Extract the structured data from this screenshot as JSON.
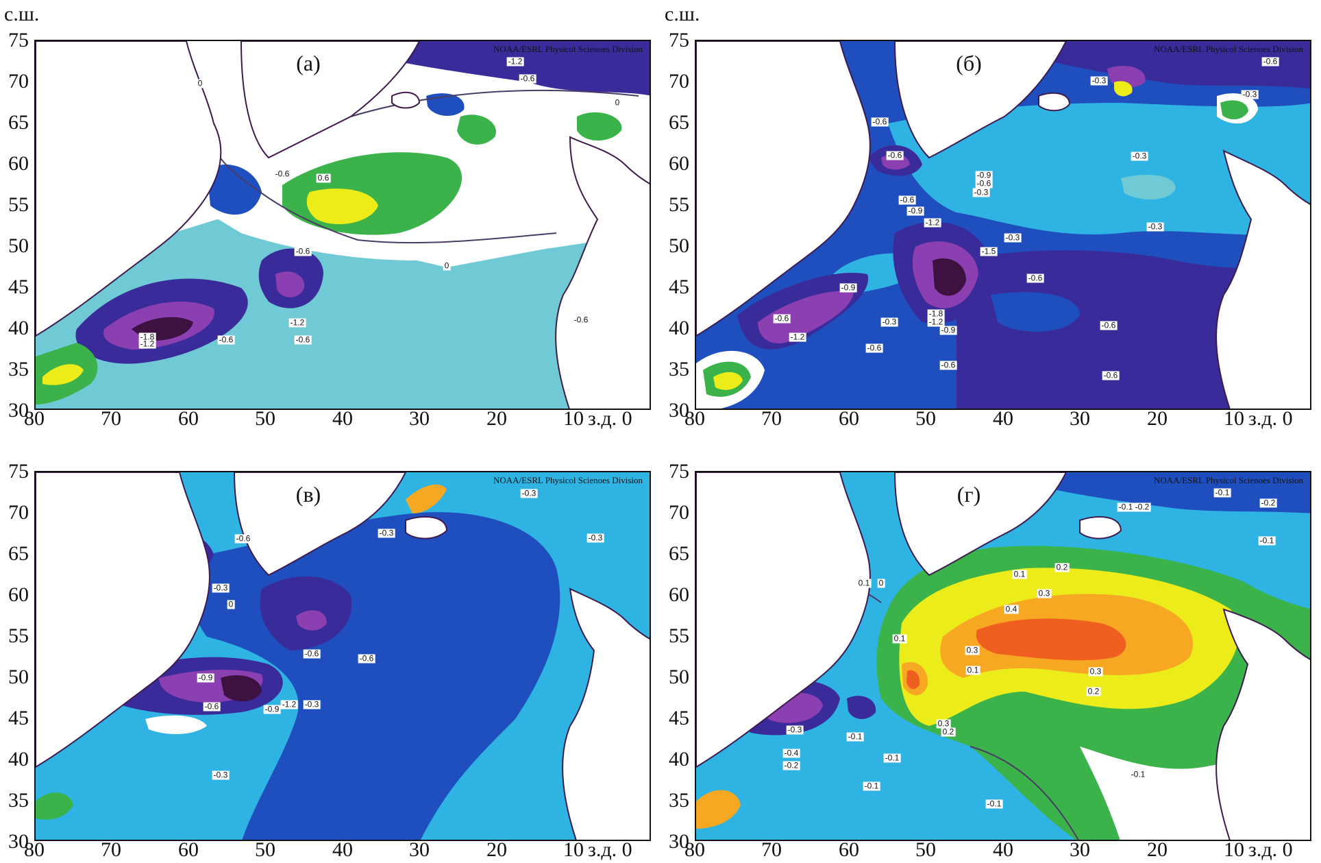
{
  "axes": {
    "y_unit": "с.ш.",
    "y_ticks": [
      "75",
      "70",
      "65",
      "60",
      "55",
      "50",
      "45",
      "40",
      "35",
      "30"
    ],
    "x_ticks": [
      "80",
      "70",
      "60",
      "50",
      "40",
      "30",
      "20",
      "10"
    ],
    "x_unit": "з.д. 0",
    "lat_range": [
      30,
      75
    ],
    "lon_range_west": [
      80,
      0
    ]
  },
  "credit": "NOAA/ESRL Physicol Scienoes Division",
  "colors": {
    "land": "#ffffff",
    "coast": "#3d1a4e",
    "contour": "#4a3b66",
    "neg_0": "#ffffff",
    "neg_1": "#6fcad6",
    "neg_2": "#2fb3e3",
    "neg_3": "#1f4fbf",
    "neg_4": "#3a2b9a",
    "neg_5": "#8b3fb0",
    "neg_6": "#3d1140",
    "pos_1": "#3bb34a",
    "pos_2": "#7cc242",
    "pos_3": "#ecec1a",
    "pos_4": "#f7a823",
    "pos_5": "#ef6020"
  },
  "panels": [
    {
      "label": "(а)",
      "contour_labels": [
        "-1.2",
        "-0.6",
        "0",
        "-0.6",
        "0.6",
        "-0.6",
        "-1.2",
        "-0.6",
        "-1.8",
        "-1.2",
        "-0.6",
        "-0.6",
        "0",
        "0"
      ]
    },
    {
      "label": "(б)",
      "contour_labels": [
        "-0.6",
        "-0.3",
        "-0.3",
        "-0.6",
        "-0.6",
        "-0.9",
        "-0.6",
        "-0.3",
        "-0.3",
        "-0.6",
        "-0.9",
        "-1.2",
        "-0.3",
        "-0.3",
        "-1.5",
        "-0.6",
        "-0.9",
        "-0.6",
        "-1.2",
        "-0.3",
        "-1.8",
        "-1.2",
        "-0.9",
        "-0.6",
        "-0.6",
        "-0.6",
        "-0.6"
      ]
    },
    {
      "label": "(в)",
      "contour_labels": [
        "-0.3",
        "-0.6",
        "-0.3",
        "-0.3",
        "-0.3",
        "0",
        "-0.6",
        "-0.6",
        "-0.9",
        "-0.6",
        "-0.9",
        "-1.2",
        "-0.3",
        "-0.3"
      ]
    },
    {
      "label": "(г)",
      "contour_labels": [
        "-0.1",
        "-0.1",
        "-0.2",
        "-0.2",
        "-0.1",
        "0.1",
        "0",
        "0.2",
        "0.1",
        "0.3",
        "0.4",
        "0.1",
        "0.3",
        "0.1",
        "0.3",
        "0.2",
        "0.3",
        "0.2",
        "-0.3",
        "-0.1",
        "-0.4",
        "-0.2",
        "-0.1",
        "-0.1",
        "-0.1",
        "-0.1"
      ]
    }
  ]
}
